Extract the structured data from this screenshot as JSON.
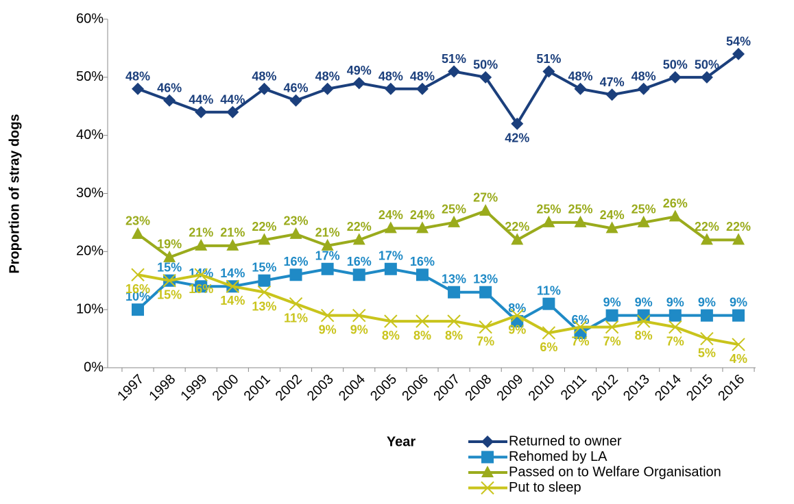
{
  "chart_data": {
    "type": "line",
    "x_label": "Year",
    "y_label": "Proportion of stray dogs",
    "categories": [
      "1997",
      "1998",
      "1999",
      "2000",
      "2001",
      "2002",
      "2003",
      "2004",
      "2005",
      "2006",
      "2007",
      "2008",
      "2009",
      "2010",
      "2011",
      "2012",
      "2013",
      "2014",
      "2015",
      "2016"
    ],
    "ylim": [
      0,
      60
    ],
    "yticks": [
      {
        "value": 0,
        "label": "0%"
      },
      {
        "value": 10,
        "label": "10%"
      },
      {
        "value": 20,
        "label": "20%"
      },
      {
        "value": 30,
        "label": "30%"
      },
      {
        "value": 40,
        "label": "40%"
      },
      {
        "value": 50,
        "label": "50%"
      },
      {
        "value": 60,
        "label": "60%"
      }
    ],
    "series": [
      {
        "name": "Returned to owner",
        "color": "#1b3f7c",
        "marker": "diamond",
        "values": [
          48,
          46,
          44,
          44,
          48,
          46,
          48,
          49,
          48,
          48,
          51,
          50,
          42,
          51,
          48,
          47,
          48,
          50,
          50,
          54
        ],
        "value_labels": [
          "48%",
          "46%",
          "44%",
          "44%",
          "48%",
          "46%",
          "48%",
          "49%",
          "48%",
          "48%",
          "51%",
          "50%",
          "42%",
          "51%",
          "48%",
          "47%",
          "48%",
          "50%",
          "50%",
          "54%"
        ]
      },
      {
        "name": "Rehomed by LA",
        "color": "#1f8ac6",
        "marker": "square",
        "values": [
          10,
          15,
          14,
          14,
          15,
          16,
          17,
          16,
          17,
          16,
          13,
          13,
          8,
          11,
          6,
          9,
          9,
          9,
          9,
          9
        ],
        "value_labels": [
          "10%",
          "15%",
          "14%",
          "14%",
          "15%",
          "16%",
          "17%",
          "16%",
          "17%",
          "16%",
          "13%",
          "13%",
          "8%",
          "11%",
          "6%",
          "9%",
          "9%",
          "9%",
          "9%",
          "9%"
        ]
      },
      {
        "name": "Passed on to Welfare Organisation",
        "color": "#9aab1c",
        "marker": "triangle",
        "values": [
          23,
          19,
          21,
          21,
          22,
          23,
          21,
          22,
          24,
          24,
          25,
          27,
          22,
          25,
          25,
          24,
          25,
          26,
          22,
          22
        ],
        "value_labels": [
          "23%",
          "19%",
          "21%",
          "21%",
          "22%",
          "23%",
          "21%",
          "22%",
          "24%",
          "24%",
          "25%",
          "27%",
          "22%",
          "25%",
          "25%",
          "24%",
          "25%",
          "26%",
          "22%",
          "22%"
        ]
      },
      {
        "name": "Put to sleep",
        "color": "#c9c41c",
        "marker": "x",
        "values": [
          16,
          15,
          16,
          14,
          13,
          11,
          9,
          9,
          8,
          8,
          8,
          7,
          9,
          6,
          7,
          7,
          8,
          7,
          5,
          4
        ],
        "value_labels": [
          "16%",
          "15%",
          "16%",
          "14%",
          "13%",
          "11%",
          "9%",
          "9%",
          "8%",
          "8%",
          "8%",
          "7%",
          "9%",
          "6%",
          "7%",
          "7%",
          "8%",
          "7%",
          "5%",
          "4%"
        ]
      }
    ]
  }
}
